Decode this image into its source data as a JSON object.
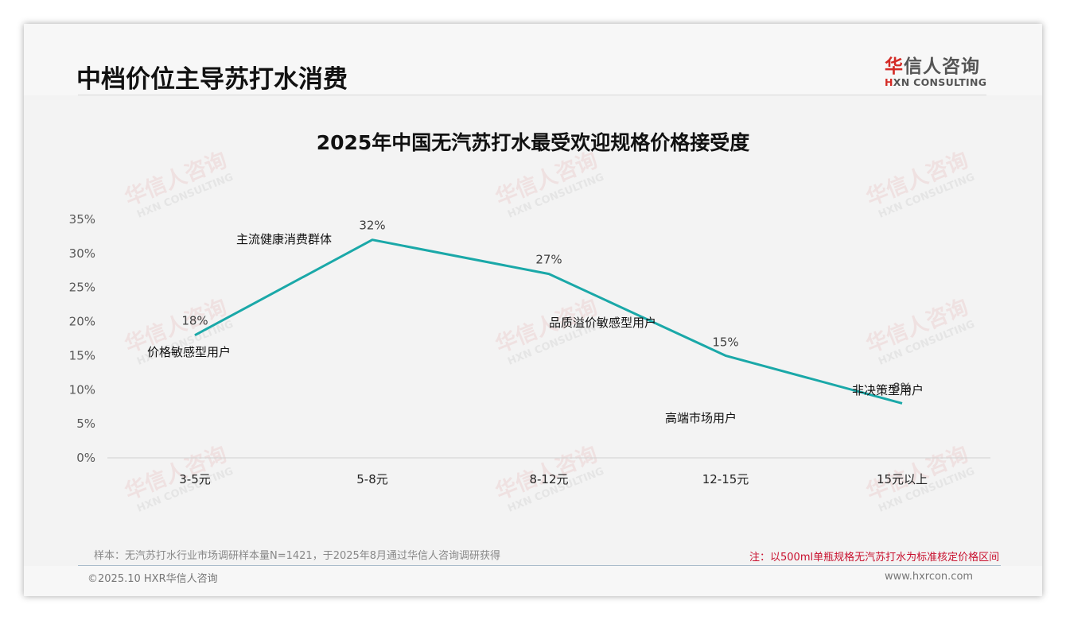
{
  "header": {
    "page_title": "中档价位主导苏打水消费",
    "logo": {
      "cn_accent": "华",
      "cn_rest": "信人咨询",
      "en_accent": "H",
      "en_rest": "XN CONSULTING"
    }
  },
  "watermark": {
    "cn": "华信人咨询",
    "en": "HXN CONSULTING"
  },
  "chart_data": {
    "type": "line",
    "title": "2025年中国无汽苏打水最受欢迎规格价格接受度",
    "xlabel": "",
    "ylabel": "",
    "categories": [
      "3-5元",
      "5-8元",
      "8-12元",
      "12-15元",
      "15元以上"
    ],
    "series": [
      {
        "name": "价格接受度",
        "values": [
          18,
          32,
          27,
          15,
          8
        ],
        "color": "#1aa8a8"
      }
    ],
    "data_labels": [
      "18%",
      "32%",
      "27%",
      "15%",
      "8%"
    ],
    "annotations": [
      {
        "category": "3-5元",
        "text": "价格敏感型用户"
      },
      {
        "category": "5-8元",
        "text": "主流健康消费群体"
      },
      {
        "category": "8-12元",
        "text": "品质溢价敏感型用户"
      },
      {
        "category": "12-15元",
        "text": "高端市场用户"
      },
      {
        "category": "15元以上",
        "text": "非决策型用户"
      }
    ],
    "ylim": [
      0,
      35
    ],
    "yticks": [
      "0%",
      "5%",
      "10%",
      "15%",
      "20%",
      "25%",
      "30%",
      "35%"
    ],
    "grid": false,
    "legend": "none"
  },
  "footer": {
    "sample_note": "样本：无汽苏打水行业市场调研样本量N=1421，于2025年8月通过华信人咨询调研获得",
    "note": "注：以500ml单瓶规格无汽苏打水为标准核定价格区间",
    "copyright": "©2025.10 HXR华信人咨询",
    "website": "www.hxrcon.com"
  }
}
